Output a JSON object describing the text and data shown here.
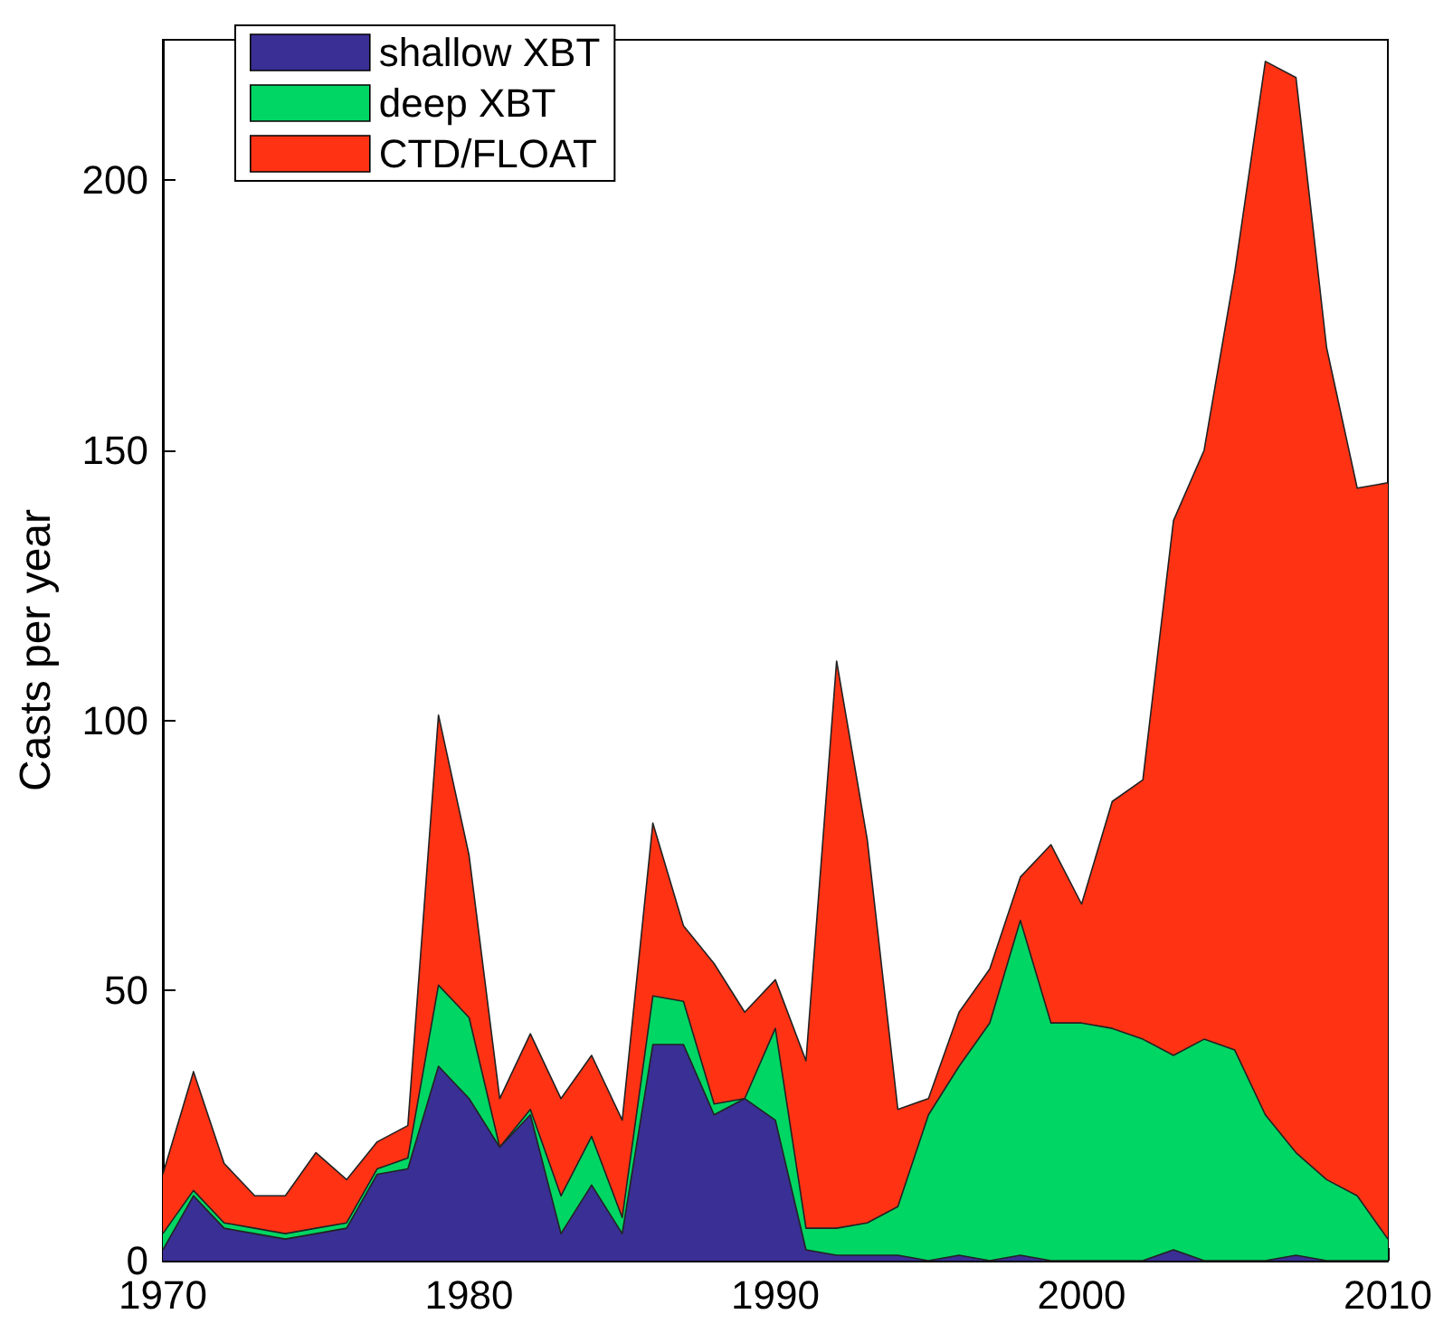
{
  "chart_data": {
    "type": "area",
    "stacked": true,
    "ylabel": "Casts per year",
    "x": [
      1970,
      1971,
      1972,
      1973,
      1974,
      1975,
      1976,
      1977,
      1978,
      1979,
      1980,
      1981,
      1982,
      1983,
      1984,
      1985,
      1986,
      1987,
      1988,
      1989,
      1990,
      1991,
      1992,
      1993,
      1994,
      1995,
      1996,
      1997,
      1998,
      1999,
      2000,
      2001,
      2002,
      2003,
      2004,
      2005,
      2006,
      2007,
      2008,
      2009,
      2010
    ],
    "series": [
      {
        "name": "shallow XBT",
        "color": "#3a2f94",
        "values": [
          2,
          12,
          6,
          5,
          4,
          5,
          6,
          16,
          17,
          36,
          30,
          21,
          27,
          5,
          14,
          5,
          40,
          40,
          27,
          30,
          26,
          2,
          1,
          1,
          1,
          0,
          1,
          0,
          1,
          0,
          0,
          0,
          0,
          2,
          0,
          0,
          0,
          1,
          0,
          0,
          0
        ]
      },
      {
        "name": "deep XBT",
        "color": "#00d664",
        "values": [
          3,
          1,
          1,
          1,
          1,
          1,
          1,
          1,
          2,
          15,
          15,
          0,
          1,
          7,
          9,
          3,
          9,
          8,
          2,
          0,
          17,
          4,
          5,
          6,
          9,
          27,
          35,
          44,
          62,
          44,
          44,
          43,
          41,
          36,
          41,
          39,
          27,
          19,
          15,
          12,
          4
        ]
      },
      {
        "name": "CTD/FLOAT",
        "color": "#ff3314",
        "values": [
          11,
          22,
          11,
          6,
          7,
          14,
          8,
          5,
          6,
          50,
          30,
          9,
          14,
          18,
          15,
          18,
          32,
          14,
          26,
          16,
          9,
          31,
          105,
          71,
          18,
          3,
          10,
          10,
          8,
          33,
          22,
          42,
          48,
          99,
          109,
          144,
          195,
          199,
          154,
          131,
          140
        ]
      }
    ],
    "xlim": [
      1970,
      2010
    ],
    "xticks": [
      1970,
      1980,
      1990,
      2000,
      2010
    ],
    "ylim": [
      0,
      226
    ],
    "yticks": [
      0,
      50,
      100,
      150,
      200
    ],
    "grid": false,
    "legend": "top left"
  }
}
